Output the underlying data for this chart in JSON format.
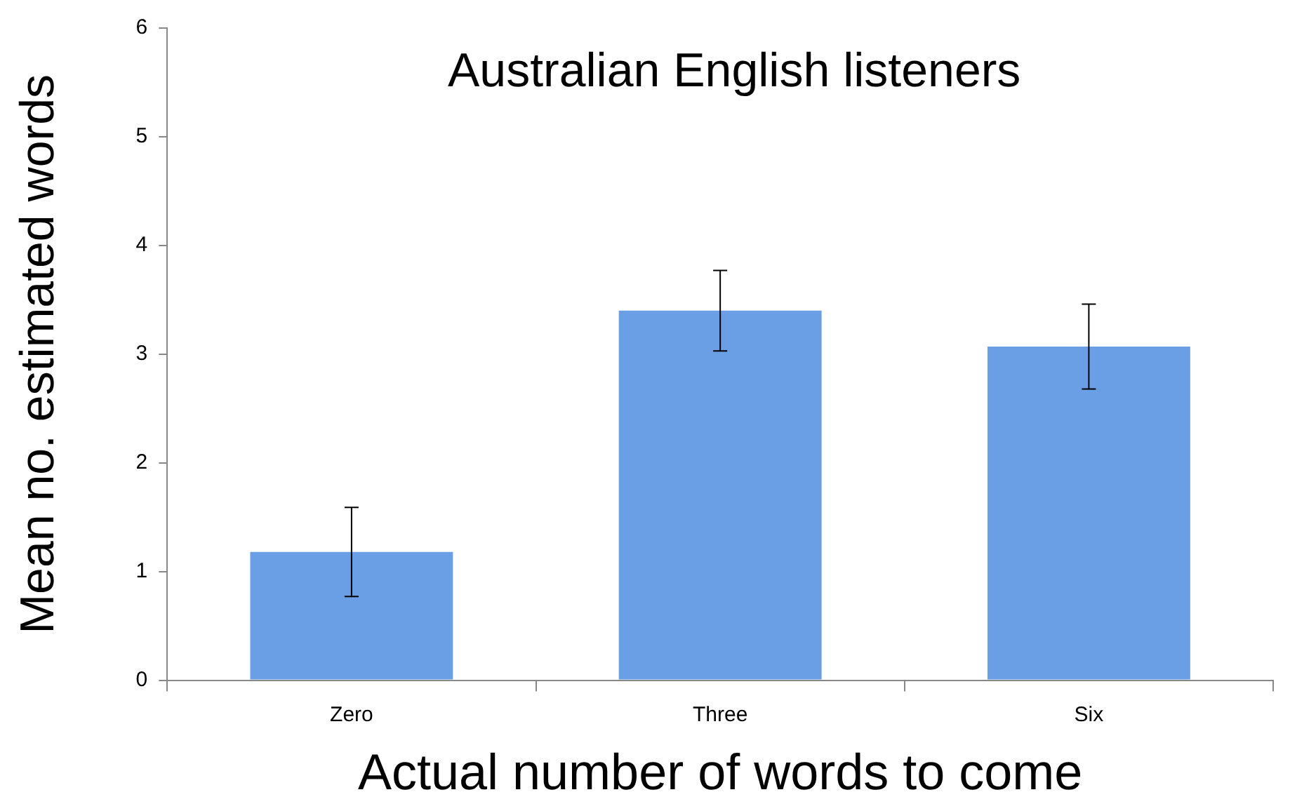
{
  "chart_data": {
    "type": "bar",
    "title": "Australian English listeners",
    "xlabel": "Actual number of words to come",
    "ylabel": "Mean no. estimated words",
    "categories": [
      "Zero",
      "Three",
      "Six"
    ],
    "values": [
      1.18,
      3.4,
      3.07
    ],
    "errors": [
      0.41,
      0.37,
      0.39
    ],
    "color": "#6a9fe6",
    "ylim": [
      0,
      6
    ],
    "yticks": [
      0,
      1,
      2,
      3,
      4,
      5,
      6
    ],
    "grid": false,
    "legend": false
  }
}
